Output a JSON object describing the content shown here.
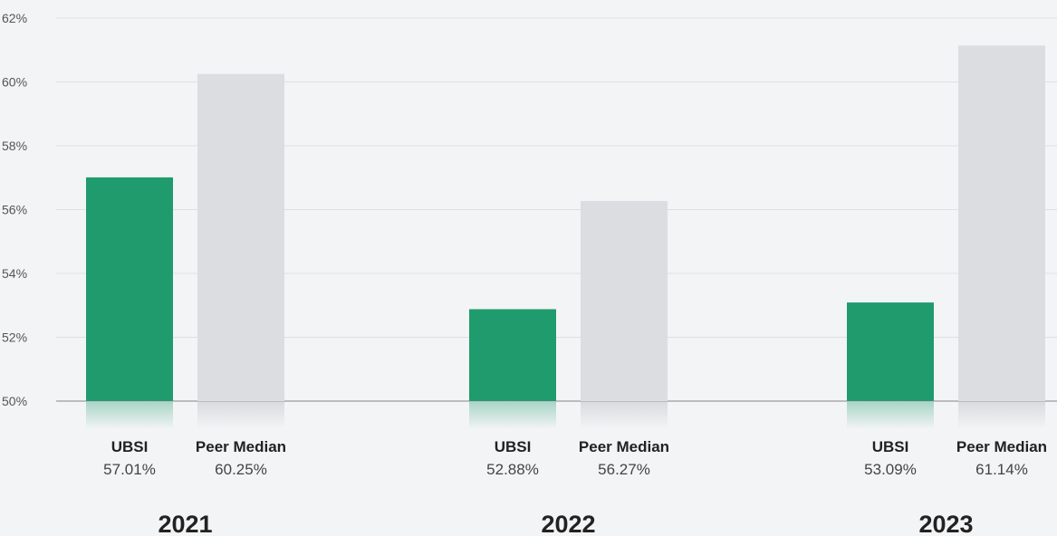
{
  "chart_data": {
    "type": "bar",
    "categories": [
      "2021",
      "2022",
      "2023"
    ],
    "series": [
      {
        "name": "UBSI",
        "values": [
          57.01,
          52.88,
          53.09
        ],
        "value_labels": [
          "57.01%",
          "52.88%",
          "53.09%"
        ],
        "color": "#209b6d"
      },
      {
        "name": "Peer Median",
        "values": [
          60.25,
          56.27,
          61.14
        ],
        "value_labels": [
          "60.25%",
          "56.27%",
          "61.14%"
        ],
        "color": "#dcdde0"
      }
    ],
    "ylim": [
      50,
      62
    ],
    "yticks": [
      50,
      52,
      54,
      56,
      58,
      60,
      62
    ],
    "ytick_labels": [
      "50%",
      "52%",
      "54%",
      "56%",
      "58%",
      "60%",
      "62%"
    ],
    "grid": true,
    "title": "",
    "xlabel": "",
    "ylabel": ""
  },
  "colors": {
    "background": "#f3f4f6",
    "gridline": "#dedfe2",
    "baseline": "#a9aaad"
  }
}
